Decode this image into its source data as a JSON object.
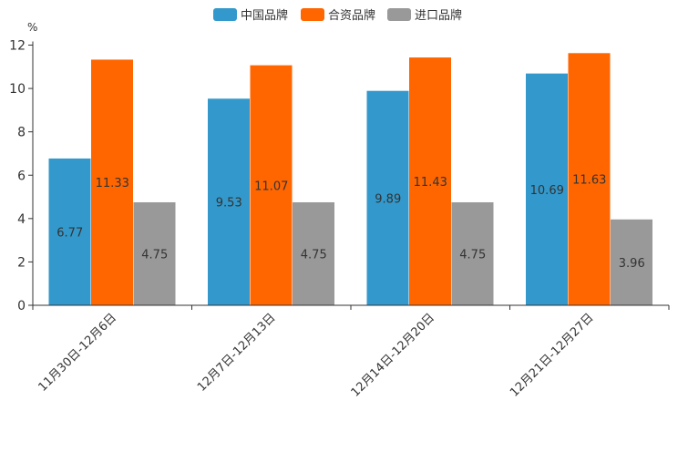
{
  "chart_data": {
    "type": "bar",
    "title": "",
    "xlabel": "",
    "ylabel": "%",
    "ylim": [
      0,
      12
    ],
    "yticks": [
      0,
      2,
      4,
      6,
      8,
      10,
      12
    ],
    "grid": false,
    "legend_position": "top-center",
    "categories": [
      "11月30日-12月6日",
      "12月7日-12月13日",
      "12月14日-12月20日",
      "12月21日-12月27日"
    ],
    "series": [
      {
        "name": "中国品牌",
        "color": "#3399cc",
        "values": [
          6.77,
          9.53,
          9.89,
          10.69
        ]
      },
      {
        "name": "合资品牌",
        "color": "#ff6600",
        "values": [
          11.33,
          11.07,
          11.43,
          11.63
        ]
      },
      {
        "name": "进口品牌",
        "color": "#999999",
        "values": [
          4.75,
          4.75,
          4.75,
          3.96
        ]
      }
    ]
  }
}
